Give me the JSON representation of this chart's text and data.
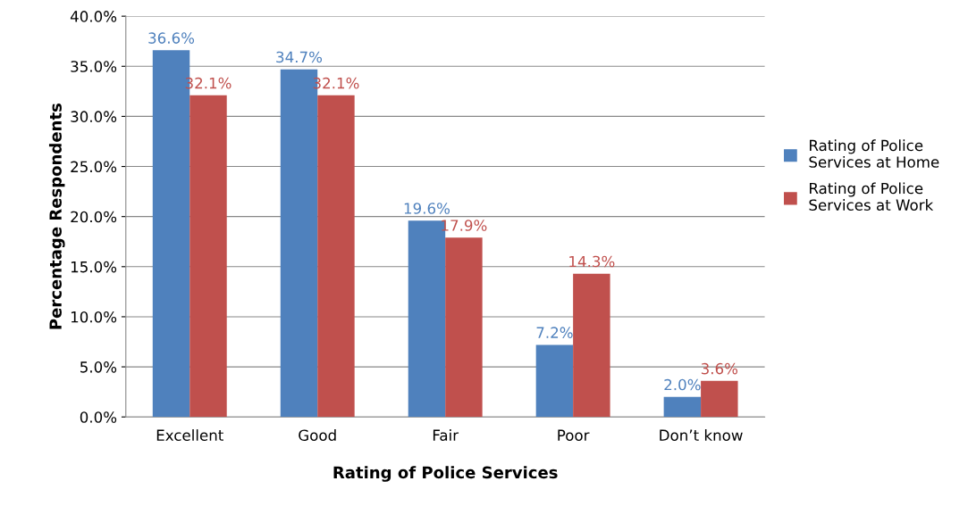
{
  "chart_data": {
    "type": "bar",
    "xlabel": "Rating of Police Services",
    "ylabel": "Percentage Respondents",
    "categories": [
      "Excellent",
      "Good",
      "Fair",
      "Poor",
      "Don’t know"
    ],
    "series": [
      {
        "name": "Rating of Police Services at Home",
        "color": "#4f81bd",
        "values": [
          36.6,
          34.7,
          19.6,
          7.2,
          2.0
        ],
        "value_labels": [
          "36.6%",
          "34.7%",
          "19.6%",
          "7.2%",
          "2.0%"
        ]
      },
      {
        "name": "Rating of Police Services at Work",
        "color": "#c0504d",
        "values": [
          32.1,
          32.1,
          17.9,
          14.3,
          3.6
        ],
        "value_labels": [
          "32.1%",
          "32.1%",
          "17.9%",
          "14.3%",
          "3.6%"
        ]
      }
    ],
    "ylim": [
      0,
      40
    ],
    "yticks": [
      {
        "value": 0,
        "label": "0.0%"
      },
      {
        "value": 5,
        "label": "5.0%"
      },
      {
        "value": 10,
        "label": "10.0%"
      },
      {
        "value": 15,
        "label": "15.0%"
      },
      {
        "value": 20,
        "label": "20.0%"
      },
      {
        "value": 25,
        "label": "25.0%"
      },
      {
        "value": 30,
        "label": "30.0%"
      },
      {
        "value": 35,
        "label": "35.0%"
      },
      {
        "value": 40,
        "label": "40.0%"
      }
    ],
    "grid": "y",
    "legend": "right"
  }
}
